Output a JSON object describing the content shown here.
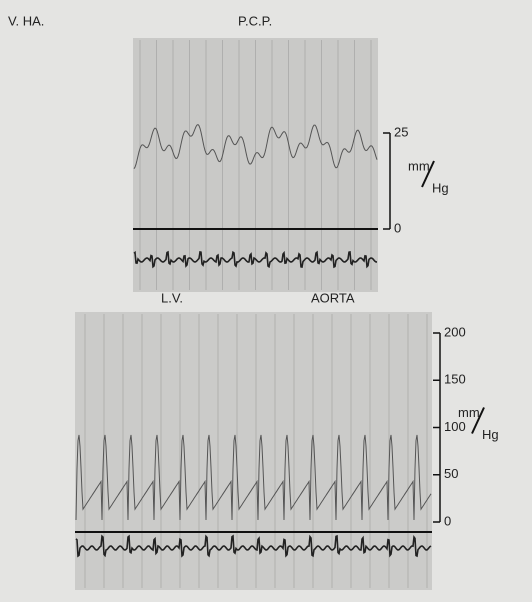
{
  "labels": {
    "subject": "V. HA.",
    "top_panel": "P.C.P.",
    "left_trace": "L.V.",
    "right_trace": "AORTA"
  },
  "top_scale": {
    "ticks": [
      0,
      25
    ],
    "unit_top": "mm",
    "unit_bottom": "Hg"
  },
  "bottom_scale": {
    "ticks": [
      0,
      50,
      100,
      150,
      200
    ],
    "unit_top": "mm",
    "unit_bottom": "Hg"
  }
}
